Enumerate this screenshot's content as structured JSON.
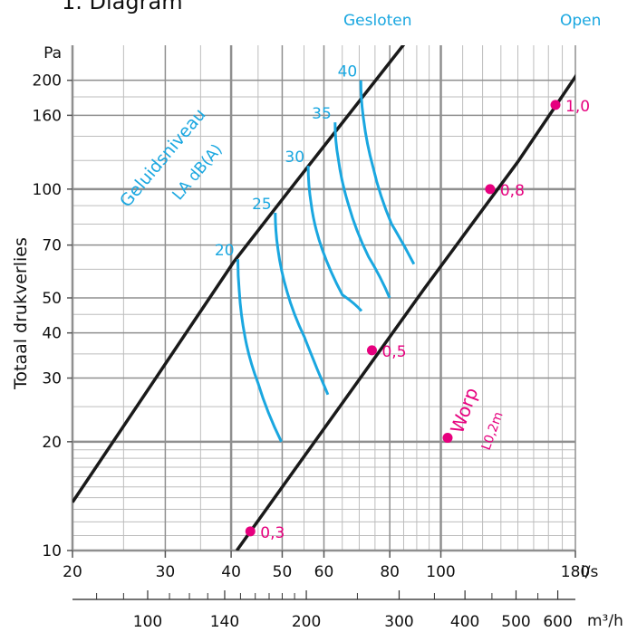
{
  "chart_data": {
    "type": "line",
    "title": "1. Diagram",
    "ylabel": "Totaal drukverlies",
    "y_unit": "Pa",
    "x_unit": "l/s",
    "x2_unit": "m³/h",
    "x_scale": "log",
    "y_scale": "log",
    "xlim": [
      20,
      180
    ],
    "ylim": [
      10,
      250
    ],
    "grid": true,
    "x_ticks": [
      "20",
      "30",
      "40",
      "50",
      "60",
      "80",
      "100",
      "180"
    ],
    "x_tick_values": [
      20,
      30,
      40,
      50,
      60,
      80,
      100,
      180
    ],
    "x2_ticks": [
      "100",
      "140",
      "200",
      "300",
      "400",
      "500",
      "600"
    ],
    "x2_tick_values": [
      100,
      140,
      200,
      300,
      400,
      500,
      600
    ],
    "y_ticks": [
      "10",
      "20",
      "30",
      "40",
      "50",
      "70",
      "100",
      "160",
      "200"
    ],
    "y_tick_values": [
      10,
      20,
      30,
      40,
      50,
      70,
      100,
      160,
      200
    ],
    "series": [
      {
        "name": "Gesloten",
        "color": "#1a1a1a",
        "points": [
          [
            20,
            13.6
          ],
          [
            40.5,
            63
          ],
          [
            51.8,
            100
          ],
          [
            88.4,
            270
          ]
        ]
      },
      {
        "name": "Open",
        "color": "#1a1a1a",
        "points": [
          [
            41,
            10
          ],
          [
            93,
            53
          ],
          [
            140,
            119
          ],
          [
            187,
            222
          ]
        ]
      }
    ],
    "sound_level_title": "Geluidsniveau",
    "sound_level_subtitle": "LA dB(A)",
    "sound_levels": [
      {
        "label": "20",
        "points": [
          [
            41.2,
            64
          ],
          [
            41.7,
            52
          ],
          [
            43.3,
            39
          ],
          [
            46.8,
            29
          ],
          [
            53,
            20
          ]
        ]
      },
      {
        "label": "25",
        "points": [
          [
            48.5,
            86
          ],
          [
            49.7,
            68
          ],
          [
            52.5,
            52
          ],
          [
            57.8,
            39
          ],
          [
            64.5,
            27
          ]
        ]
      },
      {
        "label": "30",
        "points": [
          [
            56,
            116
          ],
          [
            57.5,
            91
          ],
          [
            61.7,
            68
          ],
          [
            68.5,
            51
          ],
          [
            73,
            46
          ]
        ]
      },
      {
        "label": "35",
        "points": [
          [
            63,
            153
          ],
          [
            64.8,
            121
          ],
          [
            69,
            90
          ],
          [
            77,
            65
          ],
          [
            83,
            50
          ]
        ]
      },
      {
        "label": "40",
        "points": [
          [
            70.5,
            200
          ],
          [
            72.3,
            155
          ],
          [
            76.5,
            115
          ],
          [
            85,
            80
          ],
          [
            93,
            62
          ]
        ]
      }
    ],
    "throw_title": "Worp",
    "throw_subtitle": "L0,2m",
    "throw_points": [
      {
        "label": "0,3",
        "x": 43.5,
        "y": 11.3
      },
      {
        "label": "0,5",
        "x": 74,
        "y": 35.8
      },
      {
        "label": "0,8",
        "x": 124,
        "y": 100
      },
      {
        "label": "1,0",
        "x": 165,
        "y": 171
      },
      {
        "label": "",
        "x": 103,
        "y": 20.5
      }
    ],
    "colors": {
      "line": "#1a1a1a",
      "sound": "#1aa7e0",
      "throw": "#e6007e",
      "grid": "#bdbdbd",
      "grid_major": "#8f8f8f"
    }
  }
}
